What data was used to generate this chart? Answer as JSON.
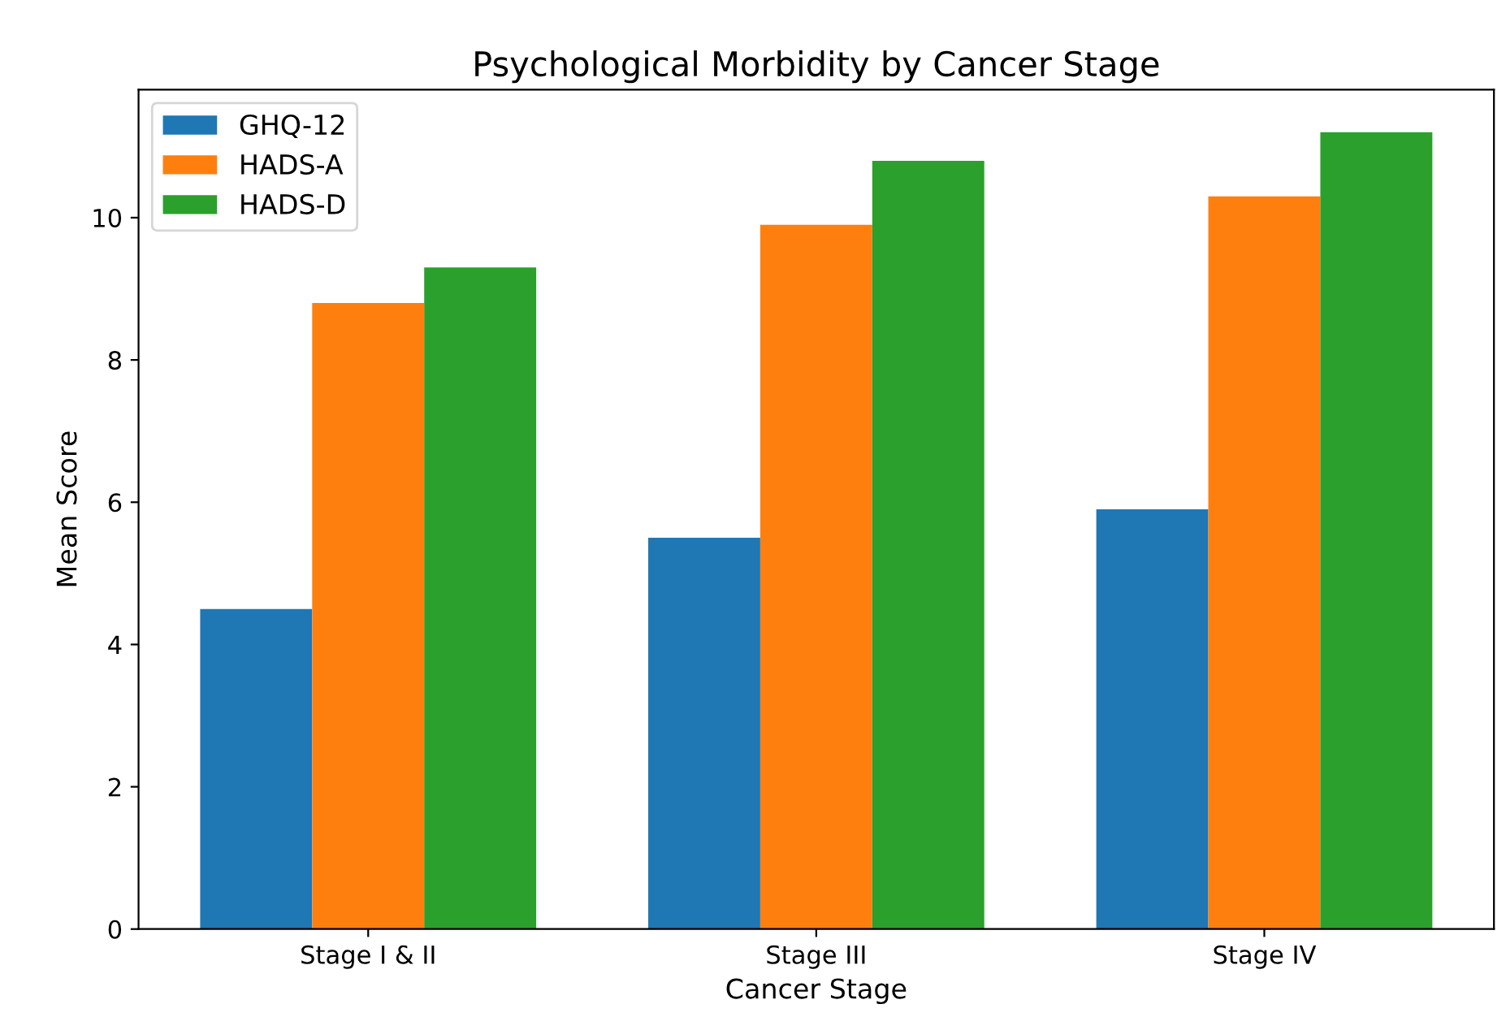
{
  "chart_data": {
    "type": "bar",
    "title": "Psychological Morbidity by Cancer Stage",
    "xlabel": "Cancer Stage",
    "ylabel": "Mean Score",
    "categories": [
      "Stage I & II",
      "Stage III",
      "Stage IV"
    ],
    "series": [
      {
        "name": "GHQ-12",
        "color": "#1f77b4",
        "values": [
          4.5,
          5.5,
          5.9
        ]
      },
      {
        "name": "HADS-A",
        "color": "#ff7f0e",
        "values": [
          8.8,
          9.9,
          10.3
        ]
      },
      {
        "name": "HADS-D",
        "color": "#2ca02c",
        "values": [
          9.3,
          10.8,
          11.2
        ]
      }
    ],
    "ylim": [
      0,
      11.8
    ],
    "yticks": [
      0,
      2,
      4,
      6,
      8,
      10
    ],
    "legend": "top left",
    "grid": false
  }
}
